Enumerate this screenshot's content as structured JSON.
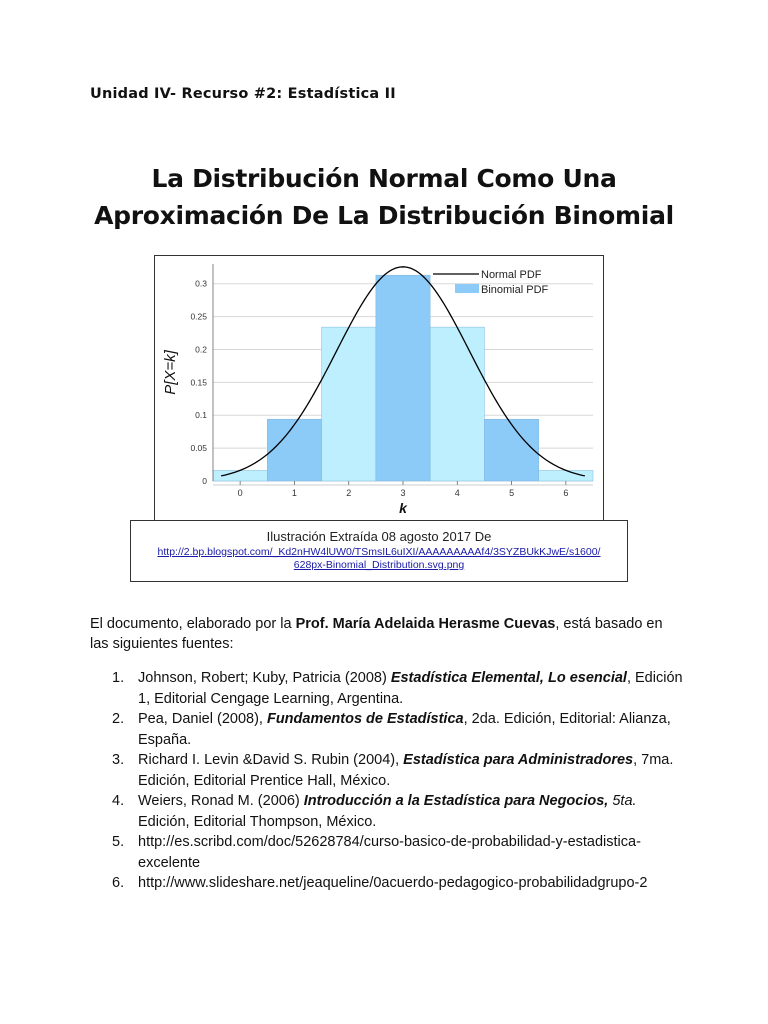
{
  "header": {
    "unit_label": "Unidad IV- Recurso #2: Estadística II"
  },
  "title": {
    "line1": "La Distribución Normal Como Una",
    "line2": "Aproximación De La Distribución Binomial"
  },
  "chart_data": {
    "type": "bar",
    "categories": [
      "0",
      "1",
      "2",
      "3",
      "4",
      "5",
      "6"
    ],
    "series": [
      {
        "name": "Binomial PDF",
        "values": [
          0.016,
          0.094,
          0.234,
          0.313,
          0.234,
          0.094,
          0.016
        ]
      },
      {
        "name": "Normal PDF",
        "type": "line",
        "mean": 3,
        "sd": 1.2247
      }
    ],
    "xlabel": "k",
    "ylabel": "P[X=k]",
    "xlim": [
      -0.5,
      6.5
    ],
    "ylim": [
      0,
      0.33
    ],
    "yticks": [
      "0",
      "0.05",
      "0.1",
      "0.15",
      "0.2",
      "0.25",
      "0.3"
    ],
    "legend": [
      "Normal PDF",
      "Binomial PDF"
    ],
    "legend_position": "top-right",
    "grid": "horizontal",
    "colors": {
      "bar_light": "#bdefff",
      "bar_dark": "#8ccaf7",
      "curve": "#000000",
      "grid": "#d8d8d8"
    }
  },
  "caption": {
    "text": "Ilustración Extraída 08 agosto 2017 De",
    "link_line1": "http://2.bp.blogspot.com/_Kd2nHW4lUW0/TSmsIL6uIXI/AAAAAAAAAf4/3SYZBUkKJwE/s1600/",
    "link_line2": "628px-Binomial_Distribution.svg.png"
  },
  "intro": {
    "before": "El documento, elaborado por la ",
    "author": "Prof. María Adelaida Herasme Cuevas",
    "after": ", está basado en las siguientes fuentes:"
  },
  "references": [
    {
      "num": "1.",
      "pre": "Johnson, Robert; Kuby, Patricia (2008) ",
      "title": "Estadística Elemental, Lo esencial",
      "post": ", Edición 1, Editorial Cengage Learning, Argentina."
    },
    {
      "num": "2.",
      "pre": "Pea, Daniel (2008), ",
      "title": "Fundamentos de Estadística",
      "post": ", 2da. Edición, Editorial: Alianza, España."
    },
    {
      "num": "3.",
      "pre": "Richard I. Levin &David S. Rubin (2004), ",
      "title": "Estadística para Administradores",
      "post": ", 7ma. Edición, Editorial Prentice Hall, México."
    },
    {
      "num": "4.",
      "pre": "Weiers, Ronad M. (2006) ",
      "title": "Introducción a la Estadística para Negocios,",
      "italic": " 5ta.",
      "post": " Edición, Editorial Thompson, México."
    },
    {
      "num": "5.",
      "pre": "http://es.scribd.com/doc/52628784/curso-basico-de-probabilidad-y-estadistica-excelente"
    },
    {
      "num": "6.",
      "pre": "http://www.slideshare.net/jeaqueline/0acuerdo-pedagogico-probabilidadgrupo-2"
    }
  ]
}
